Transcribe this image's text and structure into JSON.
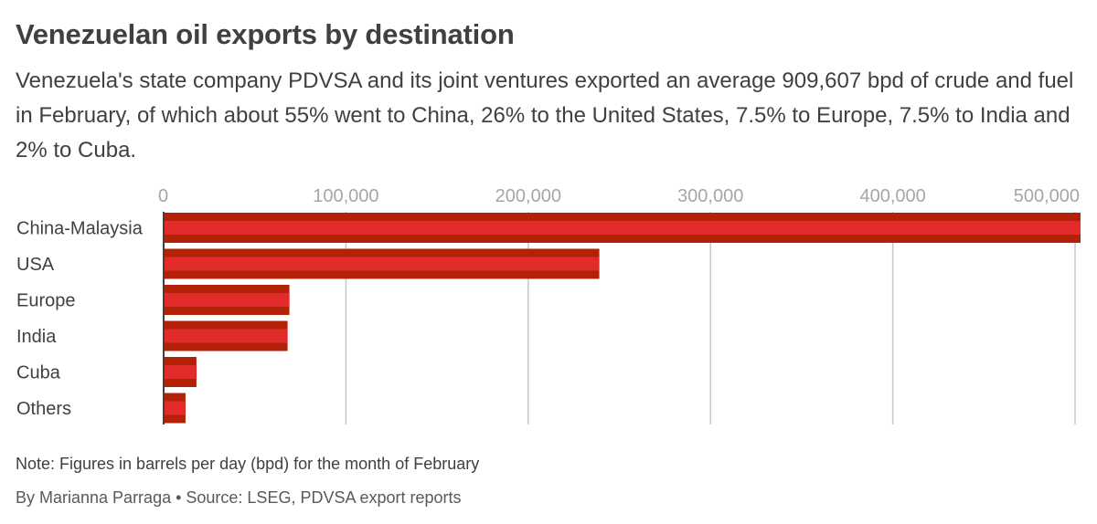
{
  "header": {
    "title": "Venezuelan oil exports by destination",
    "subtitle": "Venezuela's state company PDVSA and its joint ventures exported an average 909,607 bpd of crude and fuel in February, of which about 55% went to China, 26% to the United States, 7.5% to Europe, 7.5% to India and 2% to Cuba."
  },
  "footer": {
    "note": "Note: Figures in barrels per day (bpd) for the month of February",
    "credit": "By Marianna Parraga • Source: LSEG, PDVSA export reports"
  },
  "colors": {
    "bar_outer": "#b22207",
    "bar_inner": "#e22b2b",
    "gridline": "#c8c8c8",
    "axis": "#404040",
    "tick_text": "#a6a6a6",
    "label_text": "#404040"
  },
  "chart_data": {
    "type": "bar",
    "orientation": "horizontal",
    "categories": [
      "China-Malaysia",
      "USA",
      "Europe",
      "India",
      "Cuba",
      "Others"
    ],
    "values": [
      503000,
      239000,
      69000,
      68000,
      18000,
      12000
    ],
    "xlim": [
      0,
      503000
    ],
    "xticks": [
      0,
      100000,
      200000,
      300000,
      400000,
      500000
    ],
    "xtick_labels": [
      "0",
      "100,000",
      "200,000",
      "300,000",
      "400,000",
      "500,000"
    ],
    "grid": true,
    "tick_position": "top",
    "title": "",
    "xlabel": "",
    "ylabel": ""
  }
}
